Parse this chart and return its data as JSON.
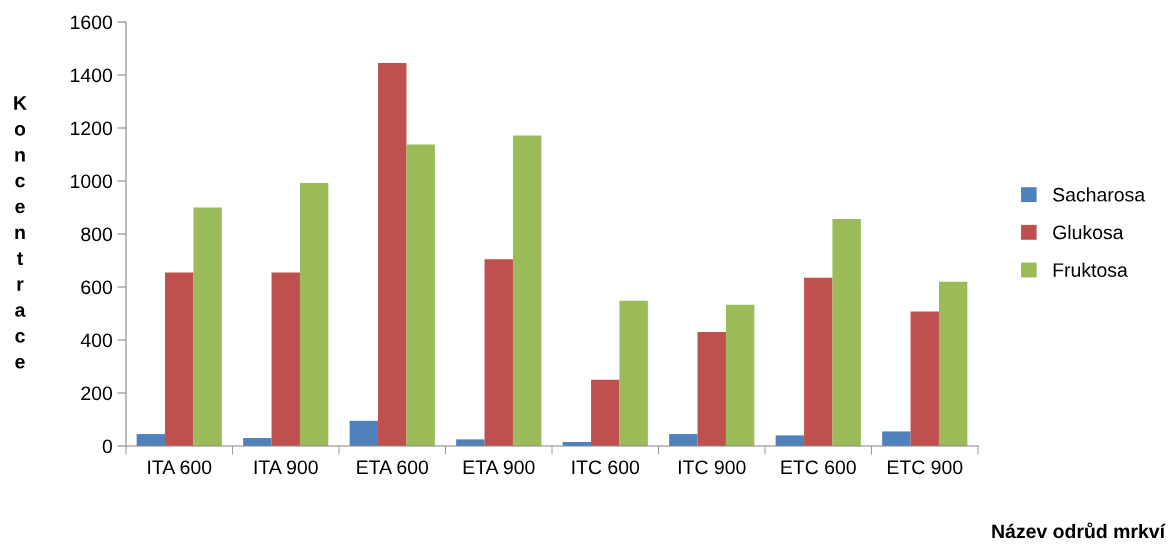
{
  "chart_data": {
    "type": "bar",
    "xlabel": "Název odrůd mrkví",
    "ylabel": "Koncentrace",
    "categories": [
      "ITA 600",
      "ITA 900",
      "ETA 600",
      "ETA 900",
      "ITC 600",
      "ITC 900",
      "ETC 600",
      "ETC 900"
    ],
    "series": [
      {
        "name": "Sacharosa",
        "color": "#4f81bd",
        "values": [
          45,
          30,
          95,
          25,
          15,
          45,
          40,
          55
        ]
      },
      {
        "name": "Glukosa",
        "color": "#c0504d",
        "values": [
          655,
          655,
          1445,
          705,
          250,
          430,
          635,
          508
        ]
      },
      {
        "name": "Fruktosa",
        "color": "#9bbb59",
        "values": [
          900,
          992,
          1138,
          1172,
          548,
          533,
          857,
          620
        ]
      }
    ],
    "ylim": [
      0,
      1600
    ],
    "yticks": [
      0,
      200,
      400,
      600,
      800,
      1000,
      1200,
      1400,
      1600
    ],
    "grid": false,
    "legend": "right"
  }
}
